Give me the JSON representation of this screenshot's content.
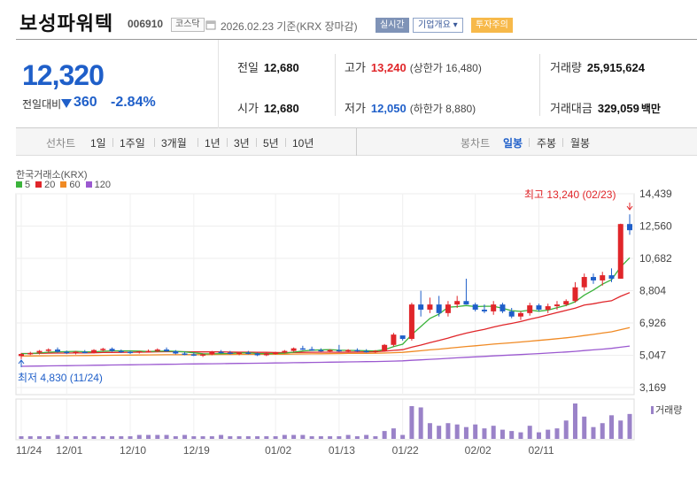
{
  "header": {
    "title": "보성파워텍",
    "code": "006910",
    "market_tag": "코스닥",
    "date": "2026.02.23 기준(KRX 장마감)",
    "realtime_label": "실시간",
    "company_label": "기업개요",
    "company_arrow": "▾",
    "warning_label": "투자주의"
  },
  "quote": {
    "price": "12,320",
    "change_label": "전일대비",
    "change": "360",
    "change_pct": "-2.84%",
    "prev_close_label": "전일",
    "prev_close": "12,680",
    "open_label": "시가",
    "open": "12,680",
    "high_label": "고가",
    "high": "13,240",
    "upper_limit": "(상한가 16,480)",
    "low_label": "저가",
    "low": "12,050",
    "lower_limit": "(하한가 8,880)",
    "volume_label": "거래량",
    "volume": "25,915,624",
    "amount_label": "거래대금",
    "amount": "329,059",
    "amount_unit": "백만"
  },
  "periods": {
    "line_label": "선차트",
    "line_items": [
      "1일",
      "1주일",
      "3개월",
      "1년",
      "3년",
      "5년",
      "10년"
    ],
    "candle_label": "봉차트",
    "candle_items": [
      "일봉",
      "주봉",
      "월봉"
    ],
    "active_candle": "일봉"
  },
  "chart_meta": {
    "exchange": "한국거래소(KRX)",
    "legend": [
      {
        "label": "5",
        "color": "#3bb33b"
      },
      {
        "label": "20",
        "color": "#e0262a"
      },
      {
        "label": "60",
        "color": "#f08a24"
      },
      {
        "label": "120",
        "color": "#9b59d0"
      }
    ],
    "max_label": "최고 13,240 (02/23)",
    "min_label": "최저 4,830 (11/24)",
    "volume_label": "거래량",
    "y_ticks": [
      "14,439",
      "12,560",
      "10,682",
      "8,804",
      "6,926",
      "5,047",
      "3,169"
    ],
    "x_ticks": [
      "11/24",
      "12/01",
      "12/10",
      "12/19",
      "01/02",
      "01/13",
      "01/22",
      "02/02",
      "02/11"
    ]
  },
  "chart_data": {
    "type": "candlestick",
    "ylim": [
      3169,
      14439
    ],
    "y_ticks": [
      14439,
      12560,
      10682,
      8804,
      6926,
      5047,
      3169
    ],
    "x_ticks": [
      "11/24",
      "12/01",
      "12/10",
      "12/19",
      "01/02",
      "01/13",
      "01/22",
      "02/02",
      "02/11"
    ],
    "colors": {
      "up": "#e0262a",
      "down": "#1f5fc9",
      "volume": "#9a82c8"
    },
    "candles": [
      [
        5000,
        5180,
        4830,
        5120
      ],
      [
        5120,
        5250,
        5060,
        5180
      ],
      [
        5200,
        5350,
        5100,
        5300
      ],
      [
        5300,
        5450,
        5220,
        5380
      ],
      [
        5380,
        5500,
        5200,
        5250
      ],
      [
        5250,
        5320,
        5120,
        5180
      ],
      [
        5180,
        5300,
        5100,
        5250
      ],
      [
        5250,
        5350,
        5150,
        5200
      ],
      [
        5200,
        5400,
        5150,
        5350
      ],
      [
        5350,
        5480,
        5280,
        5420
      ],
      [
        5420,
        5500,
        5250,
        5300
      ],
      [
        5300,
        5380,
        5180,
        5250
      ],
      [
        5250,
        5300,
        5120,
        5200
      ],
      [
        5200,
        5300,
        5150,
        5280
      ],
      [
        5280,
        5380,
        5200,
        5300
      ],
      [
        5300,
        5450,
        5250,
        5380
      ],
      [
        5380,
        5500,
        5250,
        5280
      ],
      [
        5280,
        5350,
        5100,
        5150
      ],
      [
        5150,
        5250,
        5050,
        5100
      ],
      [
        5100,
        5200,
        5000,
        5050
      ],
      [
        5050,
        5150,
        4950,
        5100
      ],
      [
        5100,
        5300,
        5050,
        5250
      ],
      [
        5250,
        5350,
        5150,
        5200
      ],
      [
        5200,
        5300,
        5100,
        5150
      ],
      [
        5150,
        5250,
        5050,
        5200
      ],
      [
        5200,
        5300,
        5100,
        5150
      ],
      [
        5150,
        5200,
        5000,
        5050
      ],
      [
        5050,
        5200,
        5000,
        5150
      ],
      [
        5150,
        5250,
        5080,
        5200
      ],
      [
        5200,
        5350,
        5150,
        5300
      ],
      [
        5300,
        5500,
        5250,
        5450
      ],
      [
        5450,
        5600,
        5350,
        5400
      ],
      [
        5400,
        5550,
        5300,
        5350
      ],
      [
        5350,
        5450,
        5250,
        5300
      ],
      [
        5300,
        5400,
        5200,
        5350
      ],
      [
        5350,
        5650,
        5250,
        5300
      ],
      [
        5300,
        5400,
        5200,
        5350
      ],
      [
        5350,
        5450,
        5250,
        5300
      ],
      [
        5300,
        5400,
        5200,
        5250
      ],
      [
        5250,
        5350,
        5180,
        5300
      ],
      [
        5300,
        5700,
        5250,
        5650
      ],
      [
        5650,
        6350,
        5550,
        6250
      ],
      [
        6200,
        6100,
        5900,
        6000
      ],
      [
        6000,
        8100,
        5900,
        8000
      ],
      [
        8000,
        8800,
        7300,
        7700
      ],
      [
        7700,
        8400,
        7500,
        8000
      ],
      [
        8000,
        8500,
        7300,
        7500
      ],
      [
        7500,
        8200,
        7300,
        8000
      ],
      [
        8000,
        8500,
        7800,
        8200
      ],
      [
        8200,
        9500,
        8000,
        8000
      ],
      [
        8000,
        8100,
        7600,
        7700
      ],
      [
        7700,
        8000,
        7500,
        7600
      ],
      [
        7600,
        8200,
        7400,
        8000
      ],
      [
        8000,
        8100,
        7500,
        7600
      ],
      [
        7600,
        7800,
        7200,
        7300
      ],
      [
        7300,
        7600,
        7100,
        7500
      ],
      [
        7500,
        8100,
        7350,
        7950
      ],
      [
        7950,
        8050,
        7600,
        7700
      ],
      [
        7700,
        8050,
        7500,
        7900
      ],
      [
        7900,
        8200,
        7700,
        8000
      ],
      [
        8000,
        8300,
        7900,
        8200
      ],
      [
        8200,
        9300,
        8100,
        9000
      ],
      [
        9000,
        9800,
        8800,
        9600
      ],
      [
        9600,
        9800,
        9200,
        9400
      ],
      [
        9400,
        9900,
        9100,
        9700
      ],
      [
        9700,
        10100,
        9300,
        9500
      ],
      [
        9500,
        12700,
        9500,
        12680
      ],
      [
        12680,
        13240,
        12050,
        12320
      ]
    ],
    "volume": [
      2,
      2,
      2,
      2,
      3,
      2,
      2,
      2,
      2,
      2,
      2,
      2,
      2,
      3,
      3,
      3,
      3,
      2,
      3,
      2,
      2,
      2,
      3,
      2,
      2,
      2,
      2,
      2,
      2,
      3,
      3,
      3,
      2,
      2,
      2,
      2,
      3,
      2,
      3,
      2,
      6,
      8,
      3,
      25,
      24,
      12,
      10,
      12,
      11,
      9,
      11,
      8,
      10,
      7,
      6,
      5,
      10,
      5,
      7,
      8,
      14,
      27,
      17,
      9,
      12,
      18,
      14,
      19
    ]
  }
}
